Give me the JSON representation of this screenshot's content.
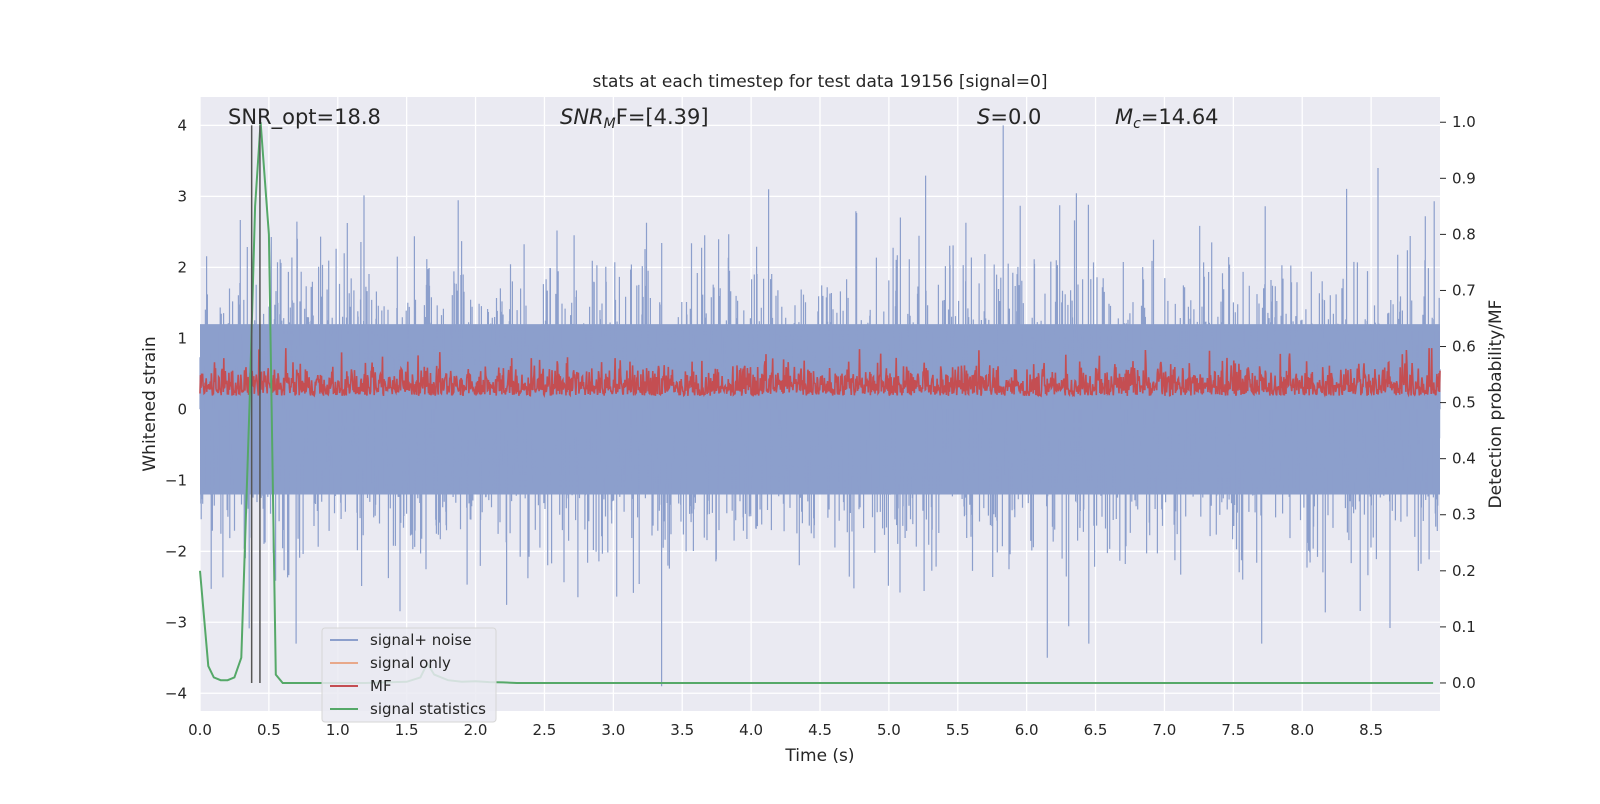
{
  "chart_data": {
    "type": "line",
    "title": "stats at each timestep for test data 19156 [signal=0]",
    "xlabel": "Time (s)",
    "ylabel": "Whitened strain",
    "ylabel_right": "Detection probability/MF",
    "xlim": [
      0.0,
      9.0
    ],
    "ylim": [
      -4.25,
      4.4
    ],
    "ylim_right": [
      -0.05,
      1.045
    ],
    "x_ticks": [
      "0.0",
      "0.5",
      "1.0",
      "1.5",
      "2.0",
      "2.5",
      "3.0",
      "3.5",
      "4.0",
      "4.5",
      "5.0",
      "5.5",
      "6.0",
      "6.5",
      "7.0",
      "7.5",
      "8.0",
      "8.5"
    ],
    "y_ticks": [
      "4",
      "3",
      "2",
      "1",
      "0",
      "−1",
      "−2",
      "−3",
      "−4"
    ],
    "y_ticks_right": [
      "1.0",
      "0.9",
      "0.8",
      "0.7",
      "0.6",
      "0.5",
      "0.4",
      "0.3",
      "0.2",
      "0.1",
      "0.0"
    ],
    "grid": true,
    "legend_position": "lower-left",
    "annotations": {
      "snr_opt": "SNR_opt=18.8",
      "snr_mf_sym": "SNR",
      "snr_mf_sub": "M",
      "snr_mf_rest": "F=[4.39]",
      "s_sym": "S",
      "s_rest": "=0.0",
      "mc_sym": "M",
      "mc_sub": "c",
      "mc_rest": "=14.64"
    },
    "vertical_markers_x": [
      0.375,
      0.435
    ],
    "series": [
      {
        "name": "signal+ noise",
        "axis": "left",
        "color": "#8c9fcc",
        "description_stats": {
          "t_start": 0.0,
          "t_end": 9.0,
          "dense_band": [
            -1.2,
            1.2
          ],
          "typical_peak": 3.0,
          "max": 4.0,
          "min": -3.9
        }
      },
      {
        "name": "signal only",
        "axis": "left",
        "color": "#e8a88a",
        "values": []
      },
      {
        "name": "MF",
        "axis": "right",
        "color": "#c44e52",
        "description_stats": {
          "t_start": 0.0,
          "t_end": 9.0,
          "base": 0.5,
          "band": [
            0.5,
            0.6
          ],
          "max": 0.62
        }
      },
      {
        "name": "signal statistics",
        "axis": "right",
        "color": "#55a868",
        "x": [
          0.0,
          0.06,
          0.1,
          0.15,
          0.2,
          0.25,
          0.3,
          0.36,
          0.4,
          0.44,
          0.5,
          0.55,
          0.6,
          0.7,
          0.9,
          1.2,
          1.5,
          1.6,
          1.65,
          1.7,
          1.8,
          1.9,
          2.0,
          2.1,
          2.2,
          2.3,
          3.0,
          4.0,
          5.0,
          6.0,
          7.0,
          8.0,
          8.95
        ],
        "values": [
          0.2,
          0.03,
          0.01,
          0.005,
          0.005,
          0.01,
          0.045,
          0.5,
          0.85,
          1.0,
          0.8,
          0.015,
          0.0,
          0.0,
          0.0,
          0.0,
          0.002,
          0.01,
          0.035,
          0.015,
          0.005,
          0.002,
          0.003,
          0.0015,
          0.001,
          0.0,
          0.0,
          0.0,
          0.0,
          0.0,
          0.0,
          0.0,
          0.0
        ]
      }
    ]
  }
}
